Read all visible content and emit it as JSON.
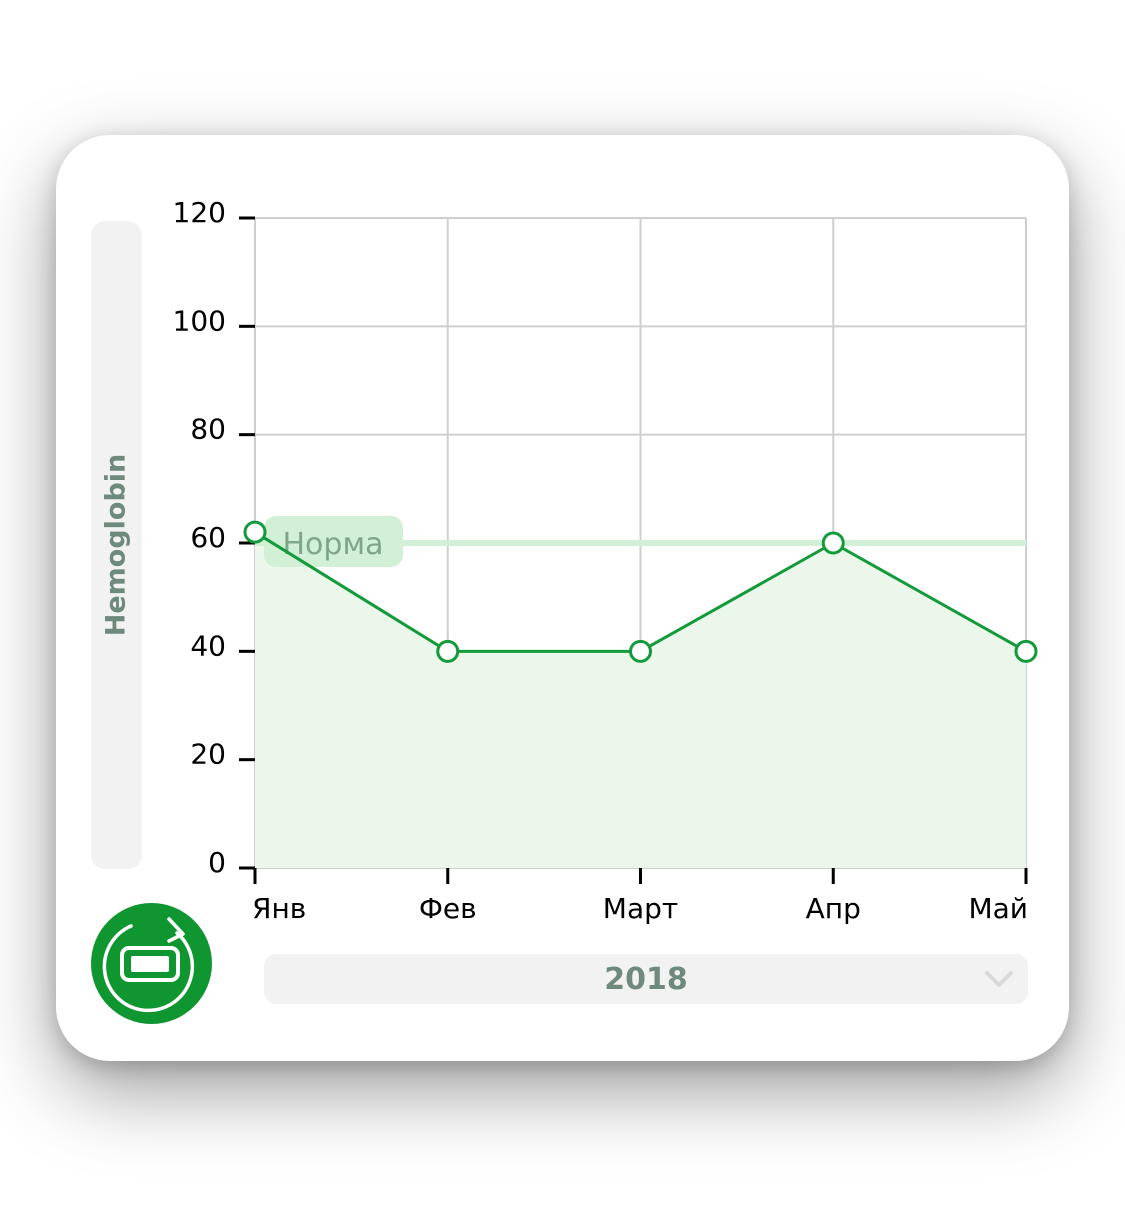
{
  "chart_data": {
    "type": "line",
    "ylabel": "Hemoglobin",
    "categories": [
      "Янв",
      "Фев",
      "Март",
      "Апр",
      "Май"
    ],
    "values": [
      62,
      40,
      40,
      60,
      40
    ],
    "ylim": [
      0,
      120
    ],
    "yticks": [
      0,
      20,
      40,
      60,
      80,
      100,
      120
    ],
    "grid": true,
    "area_fill": true,
    "reference_line": {
      "label": "Норма",
      "value": 60
    }
  },
  "year_select": {
    "value": "2018"
  },
  "icons": {
    "rotate_button": "rotate-device-icon",
    "dropdown": "chevron-down-icon"
  },
  "colors": {
    "line": "#139a3a",
    "area": "#eaf7ea",
    "reference_line": "#d2f0d6",
    "button": "#0f9630",
    "muted_text": "#6e8a7c"
  }
}
